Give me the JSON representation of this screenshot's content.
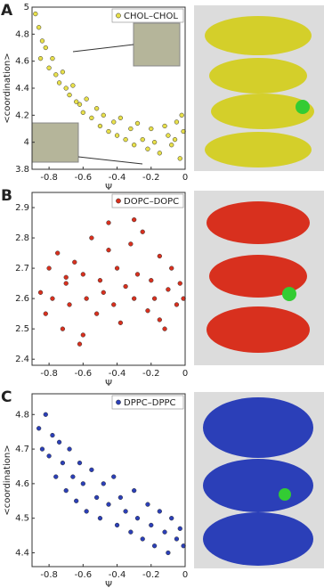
{
  "chart_data": [
    {
      "type": "scatter",
      "panel_label": "A",
      "y_label": "<coordination>",
      "x_label": "Ψ",
      "xlim": [
        -0.9,
        0
      ],
      "xticks": [
        -0.8,
        -0.6,
        -0.4,
        -0.2,
        0
      ],
      "ylim": [
        3.8,
        5
      ],
      "yticks": [
        3.8,
        4,
        4.2,
        4.4,
        4.6,
        4.8,
        5
      ],
      "x": [
        -0.88,
        -0.86,
        -0.84,
        -0.85,
        -0.82,
        -0.8,
        -0.78,
        -0.76,
        -0.74,
        -0.72,
        -0.7,
        -0.68,
        -0.66,
        -0.64,
        -0.62,
        -0.6,
        -0.58,
        -0.55,
        -0.52,
        -0.5,
        -0.48,
        -0.45,
        -0.42,
        -0.4,
        -0.38,
        -0.35,
        -0.32,
        -0.3,
        -0.28,
        -0.25,
        -0.22,
        -0.2,
        -0.18,
        -0.15,
        -0.12,
        -0.1,
        -0.08,
        -0.05,
        -0.03,
        -0.01,
        -0.02,
        -0.06
      ],
      "series": [
        {
          "name": "CHOL–CHOL",
          "color": "#e8e04a",
          "values": [
            4.95,
            4.85,
            4.75,
            4.62,
            4.7,
            4.55,
            4.62,
            4.5,
            4.44,
            4.52,
            4.4,
            4.35,
            4.42,
            4.3,
            4.28,
            4.22,
            4.32,
            4.18,
            4.25,
            4.12,
            4.2,
            4.08,
            4.15,
            4.05,
            4.18,
            4.02,
            4.1,
            3.98,
            4.14,
            4.02,
            3.95,
            4.1,
            4,
            3.92,
            4.12,
            4.05,
            3.98,
            4.15,
            3.88,
            4.08,
            4.2,
            4.02
          ]
        }
      ]
    },
    {
      "type": "scatter",
      "panel_label": "B",
      "x_label": "Ψ",
      "xlim": [
        -0.9,
        0
      ],
      "xticks": [
        -0.8,
        -0.6,
        -0.4,
        -0.2,
        0
      ],
      "ylim": [
        2.38,
        2.95
      ],
      "yticks": [
        2.4,
        2.5,
        2.6,
        2.7,
        2.8,
        2.9
      ],
      "x": [
        -0.85,
        -0.82,
        -0.8,
        -0.78,
        -0.75,
        -0.72,
        -0.7,
        -0.68,
        -0.65,
        -0.62,
        -0.6,
        -0.58,
        -0.55,
        -0.52,
        -0.5,
        -0.48,
        -0.45,
        -0.42,
        -0.4,
        -0.38,
        -0.35,
        -0.32,
        -0.3,
        -0.28,
        -0.25,
        -0.22,
        -0.2,
        -0.18,
        -0.15,
        -0.12,
        -0.1,
        -0.08,
        -0.05,
        -0.03,
        -0.01,
        -0.6,
        -0.45,
        -0.3,
        -0.15,
        -0.7
      ],
      "series": [
        {
          "name": "DOPC–DOPC",
          "color": "#d8301e",
          "values": [
            2.62,
            2.55,
            2.7,
            2.6,
            2.75,
            2.5,
            2.65,
            2.58,
            2.72,
            2.45,
            2.68,
            2.6,
            2.8,
            2.55,
            2.66,
            2.62,
            2.85,
            2.58,
            2.7,
            2.52,
            2.64,
            2.78,
            2.6,
            2.68,
            2.82,
            2.56,
            2.66,
            2.6,
            2.74,
            2.5,
            2.63,
            2.7,
            2.58,
            2.65,
            2.6,
            2.48,
            2.76,
            2.86,
            2.53,
            2.67
          ]
        }
      ]
    },
    {
      "type": "scatter",
      "panel_label": "C",
      "y_label": "<coordination>",
      "x_label": "Ψ",
      "xlim": [
        -0.9,
        0
      ],
      "xticks": [
        -0.8,
        -0.6,
        -0.4,
        -0.2,
        0
      ],
      "ylim": [
        4.36,
        4.86
      ],
      "yticks": [
        4.4,
        4.5,
        4.6,
        4.7,
        4.8
      ],
      "x": [
        -0.86,
        -0.84,
        -0.82,
        -0.8,
        -0.78,
        -0.76,
        -0.74,
        -0.72,
        -0.7,
        -0.68,
        -0.66,
        -0.64,
        -0.62,
        -0.6,
        -0.58,
        -0.55,
        -0.52,
        -0.5,
        -0.48,
        -0.45,
        -0.42,
        -0.4,
        -0.38,
        -0.35,
        -0.32,
        -0.3,
        -0.28,
        -0.25,
        -0.22,
        -0.2,
        -0.18,
        -0.15,
        -0.12,
        -0.1,
        -0.08,
        -0.05,
        -0.03,
        -0.01
      ],
      "series": [
        {
          "name": "DPPC–DPPC",
          "color": "#2b3fb8",
          "values": [
            4.76,
            4.7,
            4.8,
            4.68,
            4.74,
            4.62,
            4.72,
            4.66,
            4.58,
            4.7,
            4.62,
            4.55,
            4.66,
            4.6,
            4.52,
            4.64,
            4.56,
            4.5,
            4.6,
            4.54,
            4.62,
            4.48,
            4.56,
            4.52,
            4.46,
            4.58,
            4.5,
            4.44,
            4.54,
            4.48,
            4.42,
            4.52,
            4.46,
            4.4,
            4.5,
            4.44,
            4.47,
            4.42
          ]
        }
      ]
    }
  ]
}
